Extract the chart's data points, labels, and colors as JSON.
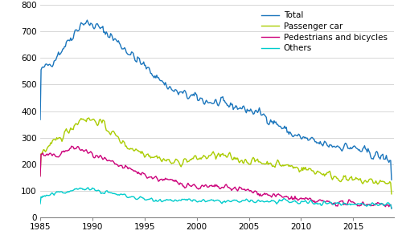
{
  "colors": {
    "total": "#1a75bc",
    "passenger_car": "#aacc00",
    "pedestrians": "#cc007a",
    "others": "#00cccc"
  },
  "legend_labels": [
    "Total",
    "Passenger car",
    "Pedestrians and bicycles",
    "Others"
  ],
  "xlim": [
    1985.0,
    2018.9
  ],
  "ylim": [
    0,
    800
  ],
  "yticks": [
    0,
    100,
    200,
    300,
    400,
    500,
    600,
    700,
    800
  ],
  "xticks": [
    1985,
    1990,
    1995,
    2000,
    2005,
    2010,
    2015
  ],
  "line_width": 1.0,
  "bg_color": "#ffffff",
  "grid_color": "#d0d0d0",
  "tick_fontsize": 7.5,
  "legend_fontsize": 7.5
}
